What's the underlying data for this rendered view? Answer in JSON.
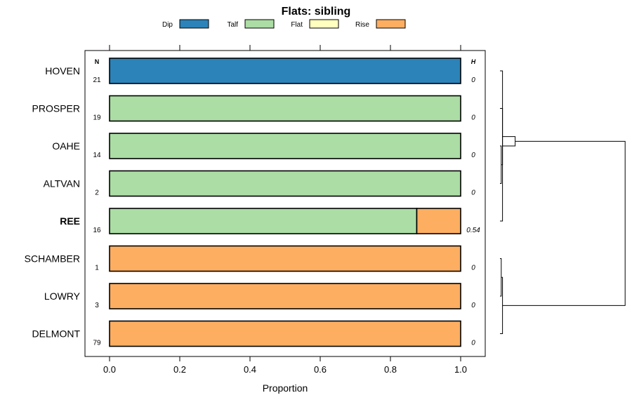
{
  "chart_data": {
    "type": "bar",
    "title": "Flats: sibling",
    "xlabel": "Proportion",
    "ylabel": "",
    "xlim": [
      -0.07,
      1.07
    ],
    "xticks": [
      0.0,
      0.2,
      0.4,
      0.6,
      0.8,
      1.0
    ],
    "xtick_labels": [
      "0.0",
      "0.2",
      "0.4",
      "0.6",
      "0.8",
      "1.0"
    ],
    "stacked": true,
    "n_header": "N",
    "h_header": "H",
    "legend": [
      {
        "name": "Dip",
        "color": "#2b83ba"
      },
      {
        "name": "Talf",
        "color": "#abdda4"
      },
      {
        "name": "Flat",
        "color": "#ffffbf"
      },
      {
        "name": "Rise",
        "color": "#fdae61"
      }
    ],
    "categories": [
      "HOVEN",
      "PROSPER",
      "OAHE",
      "ALTVAN",
      "REE",
      "SCHAMBER",
      "LOWRY",
      "DELMONT"
    ],
    "highlight": "REE",
    "n": [
      "21",
      "19",
      "14",
      "2",
      "16",
      "1",
      "3",
      "79"
    ],
    "h": [
      "0",
      "0",
      "0",
      "0",
      "0.54",
      "0",
      "0",
      "0"
    ],
    "series": [
      {
        "name": "Dip",
        "values": [
          1,
          0,
          0,
          0,
          0,
          0,
          0,
          0
        ]
      },
      {
        "name": "Talf",
        "values": [
          0,
          1,
          1,
          1,
          0.875,
          0,
          0,
          0
        ]
      },
      {
        "name": "Flat",
        "values": [
          0,
          0,
          0,
          0,
          0,
          0,
          0,
          0
        ]
      },
      {
        "name": "Rise",
        "values": [
          0,
          0,
          0,
          0,
          0.125,
          1,
          1,
          1
        ]
      }
    ],
    "dendrogram": {
      "merges": [
        {
          "a": "OAHE",
          "b": "ALTVAN",
          "height": 0.01
        },
        {
          "a": "PROSPER",
          "b": "m0",
          "height": 0.02
        },
        {
          "a": "HOVEN",
          "b": "REE",
          "height": 0.02
        },
        {
          "a": "SCHAMBER",
          "b": "LOWRY",
          "height": 0.01
        },
        {
          "a": "DELMONT",
          "b": "m3",
          "height": 0.02
        },
        {
          "a": "m1",
          "b": "m2",
          "height": 0.12
        },
        {
          "a": "m5",
          "b": "m4",
          "height": 0.99
        }
      ]
    }
  }
}
